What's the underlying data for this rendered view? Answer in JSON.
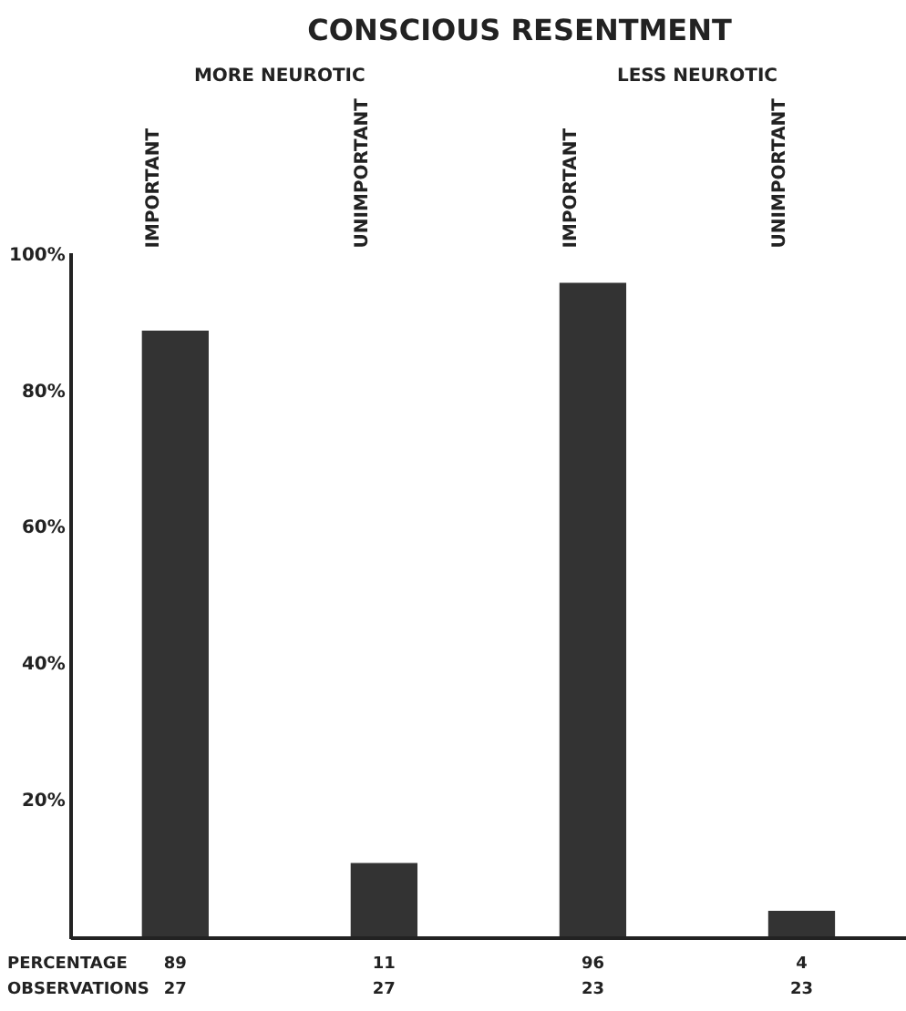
{
  "chart_data": {
    "type": "bar",
    "title": "CONSCIOUS RESENTMENT",
    "categories": [
      "IMPORTANT",
      "UNIMPORTANT",
      "IMPORTANT",
      "UNIMPORTANT"
    ],
    "values": [
      89,
      11,
      96,
      4
    ],
    "color": "#333333",
    "ylim": [
      0,
      100
    ],
    "yticks": [
      {
        "value": 20,
        "label": "20%"
      },
      {
        "value": 40,
        "label": "40%"
      },
      {
        "value": 60,
        "label": "60%"
      },
      {
        "value": 80,
        "label": "80%"
      },
      {
        "value": 100,
        "label": "100%"
      }
    ],
    "grid": false,
    "legend": false,
    "data_labels": true,
    "annotations": [
      "MORE NEUROTIC",
      "LESS NEUROTIC",
      "PERCENTAGE",
      "OBSERVATIONS",
      "27",
      "27",
      "23",
      "23"
    ]
  }
}
